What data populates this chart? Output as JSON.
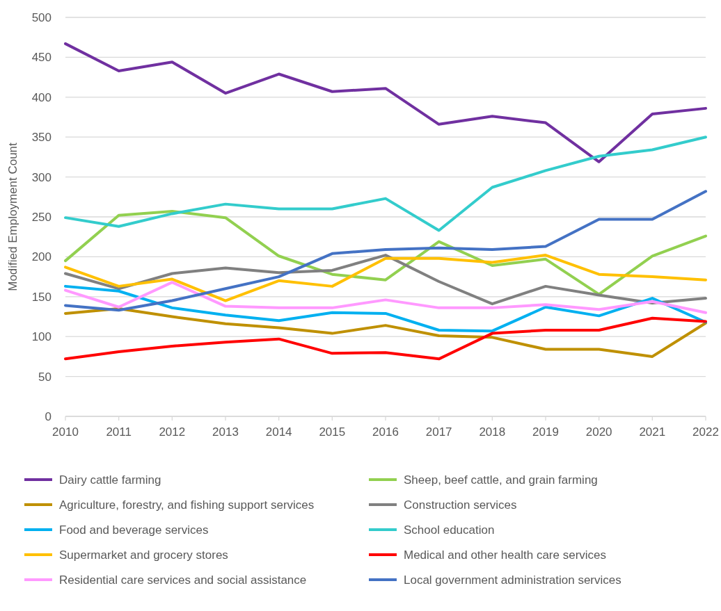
{
  "chart_data": {
    "type": "line",
    "ylabel": "Modified Employment Count",
    "x": [
      2010,
      2011,
      2012,
      2013,
      2014,
      2015,
      2016,
      2017,
      2018,
      2019,
      2020,
      2021,
      2022
    ],
    "xlim": [
      2010,
      2022
    ],
    "xticks": [
      2010,
      2011,
      2012,
      2013,
      2014,
      2015,
      2016,
      2017,
      2018,
      2019,
      2020,
      2021,
      2022
    ],
    "ylim": [
      0,
      500
    ],
    "yticks": [
      0,
      50,
      100,
      150,
      200,
      250,
      300,
      350,
      400,
      450,
      500
    ],
    "grid": "y",
    "legend": "bottom",
    "marker": "none",
    "line_style": "solid",
    "series": [
      {
        "name": "Dairy cattle farming",
        "color": "#7030a0",
        "values": [
          467,
          433,
          444,
          405,
          429,
          407,
          411,
          366,
          376,
          368,
          319,
          379,
          386
        ]
      },
      {
        "name": "Sheep, beef cattle, and grain farming",
        "color": "#92d050",
        "values": [
          195,
          252,
          257,
          249,
          201,
          178,
          171,
          219,
          189,
          197,
          153,
          201,
          226
        ]
      },
      {
        "name": "Agriculture, forestry, and fishing support services",
        "color": "#bf9000",
        "values": [
          129,
          135,
          125,
          116,
          111,
          104,
          114,
          101,
          99,
          84,
          84,
          75,
          117
        ]
      },
      {
        "name": "Construction services",
        "color": "#808080",
        "values": [
          179,
          160,
          179,
          186,
          180,
          183,
          202,
          169,
          141,
          163,
          152,
          142,
          148
        ]
      },
      {
        "name": "Food and beverage services",
        "color": "#00b0f0",
        "values": [
          163,
          157,
          136,
          127,
          120,
          130,
          129,
          108,
          107,
          137,
          126,
          148,
          118
        ]
      },
      {
        "name": "School education",
        "color": "#33cccc",
        "values": [
          249,
          238,
          254,
          266,
          260,
          260,
          273,
          233,
          287,
          308,
          326,
          334,
          350
        ]
      },
      {
        "name": "Supermarket and grocery stores",
        "color": "#ffc000",
        "values": [
          187,
          163,
          172,
          145,
          170,
          163,
          198,
          198,
          193,
          202,
          178,
          175,
          171
        ]
      },
      {
        "name": "Medical and other health care services",
        "color": "#ff0000",
        "values": [
          72,
          81,
          88,
          93,
          97,
          79,
          80,
          72,
          104,
          108,
          108,
          123,
          119
        ]
      },
      {
        "name": "Residential care services and social assistance",
        "color": "#ff99ff",
        "values": [
          158,
          137,
          168,
          138,
          136,
          136,
          146,
          136,
          136,
          140,
          134,
          144,
          130
        ]
      },
      {
        "name": "Local government administration services",
        "color": "#4472c4",
        "values": [
          139,
          133,
          145,
          160,
          175,
          204,
          209,
          211,
          209,
          213,
          247,
          247,
          282
        ]
      }
    ]
  }
}
